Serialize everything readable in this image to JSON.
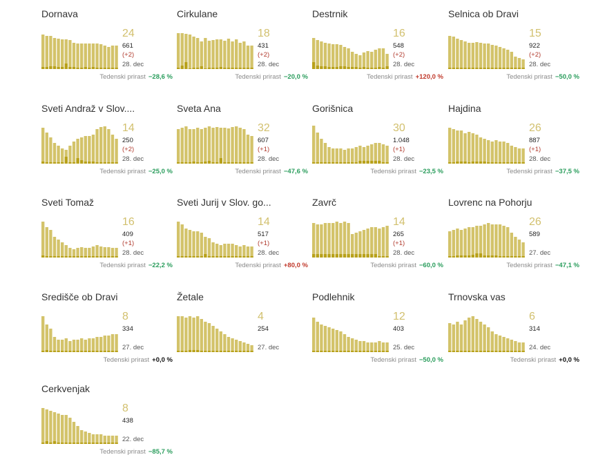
{
  "colors": {
    "bar": "#d3c36a",
    "bar_dark": "#b8a11a",
    "number": "#d2c06e",
    "negative": "#2a9d5c",
    "positive": "#c0392b"
  },
  "growth_label": "Tedenski prirast",
  "chart_data": [
    {
      "type": "bar",
      "title": "Dornava",
      "latest": "24",
      "total": "661",
      "delta": "(+2)",
      "date": "28. dec",
      "growth": "−28,6 %",
      "growth_sign": "neg",
      "values": [
        50,
        48,
        48,
        45,
        44,
        43,
        43,
        42,
        38,
        37,
        37,
        37,
        37,
        37,
        37,
        36,
        34,
        32,
        34,
        34
      ],
      "values_dark": [
        3,
        3,
        4,
        4,
        3,
        3,
        8,
        3,
        3,
        2,
        2,
        3,
        2,
        3,
        2,
        2,
        2,
        2,
        2,
        2
      ]
    },
    {
      "type": "bar",
      "title": "Cirkulane",
      "latest": "18",
      "total": "431",
      "delta": "(+2)",
      "date": "28. dec",
      "growth": "−20,0 %",
      "growth_sign": "neg",
      "values": [
        52,
        52,
        51,
        50,
        47,
        45,
        40,
        45,
        41,
        42,
        43,
        43,
        41,
        44,
        40,
        43,
        38,
        40,
        34,
        34
      ],
      "values_dark": [
        2,
        5,
        10,
        1,
        2,
        2,
        4,
        1,
        2,
        2,
        2,
        3,
        2,
        2,
        2,
        2,
        2,
        2,
        2,
        2
      ]
    },
    {
      "type": "bar",
      "title": "Destrnik",
      "latest": "16",
      "total": "548",
      "delta": "(+2)",
      "date": "28. dec",
      "growth": "+120,0 %",
      "growth_sign": "pos",
      "values": [
        45,
        42,
        40,
        38,
        37,
        36,
        36,
        35,
        32,
        30,
        25,
        22,
        20,
        24,
        26,
        25,
        28,
        30,
        30,
        22
      ],
      "values_dark": [
        10,
        5,
        4,
        4,
        3,
        3,
        3,
        4,
        4,
        3,
        3,
        3,
        2,
        3,
        2,
        2,
        2,
        3,
        2,
        4
      ]
    },
    {
      "type": "bar",
      "title": "Selnica ob Dravi",
      "latest": "15",
      "total": "922",
      "delta": "(+2)",
      "date": "28. dec",
      "growth": "−50,0 %",
      "growth_sign": "neg",
      "values": [
        48,
        47,
        44,
        42,
        40,
        38,
        38,
        39,
        38,
        37,
        37,
        35,
        34,
        32,
        30,
        28,
        25,
        18,
        16,
        14
      ],
      "values_dark": [
        2,
        2,
        2,
        2,
        2,
        2,
        2,
        2,
        2,
        2,
        2,
        2,
        2,
        2,
        2,
        2,
        2,
        2,
        2,
        2
      ]
    },
    {
      "type": "bar",
      "title": "Sveti Andraž v Slov....",
      "latest": "14",
      "total": "250",
      "delta": "(+2)",
      "date": "28. dec",
      "growth": "−25,0 %",
      "growth_sign": "neg",
      "values": [
        52,
        45,
        38,
        30,
        26,
        22,
        20,
        26,
        32,
        36,
        38,
        40,
        40,
        42,
        50,
        53,
        54,
        50,
        42,
        36
      ],
      "values_dark": [
        3,
        2,
        2,
        2,
        2,
        2,
        10,
        2,
        2,
        8,
        5,
        3,
        3,
        3,
        2,
        2,
        2,
        2,
        2,
        2
      ]
    },
    {
      "type": "bar",
      "title": "Sveta Ana",
      "latest": "32",
      "total": "607",
      "delta": "(+1)",
      "date": "28. dec",
      "growth": "−47,6 %",
      "growth_sign": "neg",
      "values": [
        50,
        52,
        54,
        50,
        50,
        52,
        50,
        52,
        54,
        52,
        53,
        52,
        52,
        51,
        53,
        54,
        52,
        50,
        42,
        40
      ],
      "values_dark": [
        2,
        2,
        2,
        2,
        3,
        2,
        2,
        3,
        4,
        2,
        2,
        8,
        2,
        2,
        2,
        2,
        2,
        2,
        2,
        2
      ]
    },
    {
      "type": "bar",
      "title": "Gorišnica",
      "latest": "30",
      "total": "1.048",
      "delta": "(+1)",
      "date": "28. dec",
      "growth": "−23,5 %",
      "growth_sign": "neg",
      "values": [
        55,
        45,
        36,
        30,
        24,
        22,
        22,
        22,
        20,
        22,
        22,
        24,
        26,
        24,
        26,
        28,
        30,
        30,
        28,
        26
      ],
      "values_dark": [
        2,
        2,
        2,
        2,
        2,
        2,
        2,
        2,
        2,
        2,
        2,
        2,
        4,
        4,
        4,
        4,
        4,
        4,
        2,
        2
      ]
    },
    {
      "type": "bar",
      "title": "Hajdina",
      "latest": "26",
      "total": "887",
      "delta": "(+1)",
      "date": "28. dec",
      "growth": "−37,5 %",
      "growth_sign": "neg",
      "values": [
        52,
        50,
        48,
        48,
        44,
        46,
        44,
        42,
        38,
        36,
        34,
        32,
        34,
        32,
        32,
        30,
        26,
        24,
        22,
        22
      ],
      "values_dark": [
        2,
        2,
        3,
        3,
        3,
        2,
        3,
        3,
        3,
        3,
        2,
        2,
        2,
        2,
        2,
        2,
        2,
        2,
        2,
        2
      ]
    },
    {
      "type": "bar",
      "title": "Sveti Tomaž",
      "latest": "16",
      "total": "409",
      "delta": "(+1)",
      "date": "28. dec",
      "growth": "−22,2 %",
      "growth_sign": "neg",
      "values": [
        52,
        44,
        40,
        30,
        26,
        22,
        18,
        14,
        12,
        14,
        15,
        14,
        14,
        16,
        18,
        16,
        15,
        15,
        14,
        14
      ],
      "values_dark": [
        3,
        2,
        2,
        2,
        2,
        2,
        2,
        2,
        2,
        2,
        2,
        2,
        2,
        2,
        2,
        2,
        2,
        2,
        2,
        2
      ]
    },
    {
      "type": "bar",
      "title": "Sveti Jurij v Slov. go...",
      "latest": "14",
      "total": "517",
      "delta": "(+1)",
      "date": "28. dec",
      "growth": "+80,0 %",
      "growth_sign": "pos",
      "values": [
        52,
        48,
        42,
        40,
        38,
        38,
        36,
        30,
        28,
        22,
        20,
        18,
        20,
        20,
        20,
        18,
        16,
        18,
        16,
        16
      ],
      "values_dark": [
        2,
        2,
        2,
        2,
        2,
        2,
        2,
        5,
        2,
        2,
        2,
        2,
        2,
        2,
        2,
        2,
        2,
        2,
        2,
        2
      ]
    },
    {
      "type": "bar",
      "title": "Zavrč",
      "latest": "14",
      "total": "265",
      "delta": "(+1)",
      "date": "28. dec",
      "growth": "−60,0 %",
      "growth_sign": "neg",
      "values": [
        50,
        48,
        48,
        50,
        50,
        50,
        52,
        50,
        52,
        50,
        34,
        36,
        38,
        40,
        42,
        44,
        44,
        42,
        44,
        46
      ],
      "values_dark": [
        5,
        5,
        5,
        5,
        5,
        5,
        5,
        5,
        5,
        5,
        5,
        5,
        5,
        5,
        5,
        5,
        5,
        2,
        2,
        2
      ]
    },
    {
      "type": "bar",
      "title": "Lovrenc na Pohorju",
      "latest": "26",
      "total": "589",
      "delta": "",
      "date": "27. dec",
      "growth": "−47,1 %",
      "growth_sign": "neg",
      "values": [
        38,
        40,
        42,
        40,
        42,
        44,
        44,
        46,
        46,
        48,
        50,
        48,
        48,
        48,
        46,
        44,
        36,
        30,
        26,
        22
      ],
      "values_dark": [
        2,
        2,
        3,
        3,
        3,
        3,
        4,
        6,
        6,
        3,
        3,
        3,
        3,
        2,
        2,
        2,
        2,
        2,
        2,
        2
      ]
    },
    {
      "type": "bar",
      "title": "Središče ob Dravi",
      "latest": "8",
      "total": "334",
      "delta": "",
      "date": "27. dec",
      "growth": "+0,0 %",
      "growth_sign": "zero",
      "values": [
        52,
        40,
        34,
        22,
        18,
        18,
        20,
        16,
        18,
        18,
        20,
        18,
        20,
        20,
        22,
        22,
        24,
        24,
        26,
        26
      ],
      "values_dark": [
        2,
        3,
        2,
        2,
        2,
        2,
        2,
        2,
        2,
        2,
        2,
        2,
        2,
        2,
        2,
        2,
        2,
        2,
        2,
        2
      ]
    },
    {
      "type": "bar",
      "title": "Žetale",
      "latest": "4",
      "total": "254",
      "delta": "",
      "date": "27. dec",
      "growth": "",
      "growth_sign": "none",
      "values": [
        52,
        52,
        50,
        52,
        50,
        52,
        48,
        44,
        42,
        38,
        34,
        30,
        26,
        22,
        20,
        18,
        16,
        14,
        12,
        10
      ],
      "values_dark": [
        2,
        2,
        2,
        3,
        3,
        3,
        2,
        2,
        2,
        2,
        2,
        2,
        2,
        2,
        2,
        2,
        2,
        2,
        2,
        2
      ]
    },
    {
      "type": "bar",
      "title": "Podlehnik",
      "latest": "12",
      "total": "403",
      "delta": "",
      "date": "25. dec",
      "growth": "−50,0 %",
      "growth_sign": "neg",
      "values": [
        50,
        44,
        40,
        38,
        36,
        34,
        32,
        30,
        26,
        22,
        20,
        18,
        16,
        16,
        14,
        14,
        14,
        16,
        14,
        14
      ],
      "values_dark": [
        2,
        2,
        2,
        2,
        2,
        2,
        2,
        2,
        2,
        2,
        2,
        2,
        2,
        2,
        2,
        2,
        2,
        2,
        2,
        2
      ]
    },
    {
      "type": "bar",
      "title": "Trnovska vas",
      "latest": "6",
      "total": "314",
      "delta": "",
      "date": "24. dec",
      "growth": "+0,0 %",
      "growth_sign": "zero",
      "values": [
        42,
        40,
        44,
        40,
        46,
        50,
        52,
        48,
        44,
        40,
        36,
        30,
        26,
        24,
        22,
        20,
        18,
        16,
        14,
        14
      ],
      "values_dark": [
        2,
        2,
        2,
        2,
        2,
        2,
        2,
        2,
        2,
        2,
        2,
        2,
        2,
        2,
        2,
        2,
        2,
        2,
        2,
        2
      ]
    },
    {
      "type": "bar",
      "title": "Cerkvenjak",
      "latest": "8",
      "total": "438",
      "delta": "",
      "date": "22. dec",
      "growth": "−85,7 %",
      "growth_sign": "neg",
      "values": [
        52,
        50,
        48,
        46,
        44,
        42,
        42,
        38,
        32,
        26,
        20,
        18,
        16,
        14,
        14,
        14,
        12,
        12,
        12,
        12
      ],
      "values_dark": [
        2,
        4,
        2,
        4,
        2,
        2,
        2,
        2,
        2,
        2,
        2,
        2,
        2,
        2,
        2,
        2,
        2,
        2,
        2,
        2
      ]
    }
  ]
}
